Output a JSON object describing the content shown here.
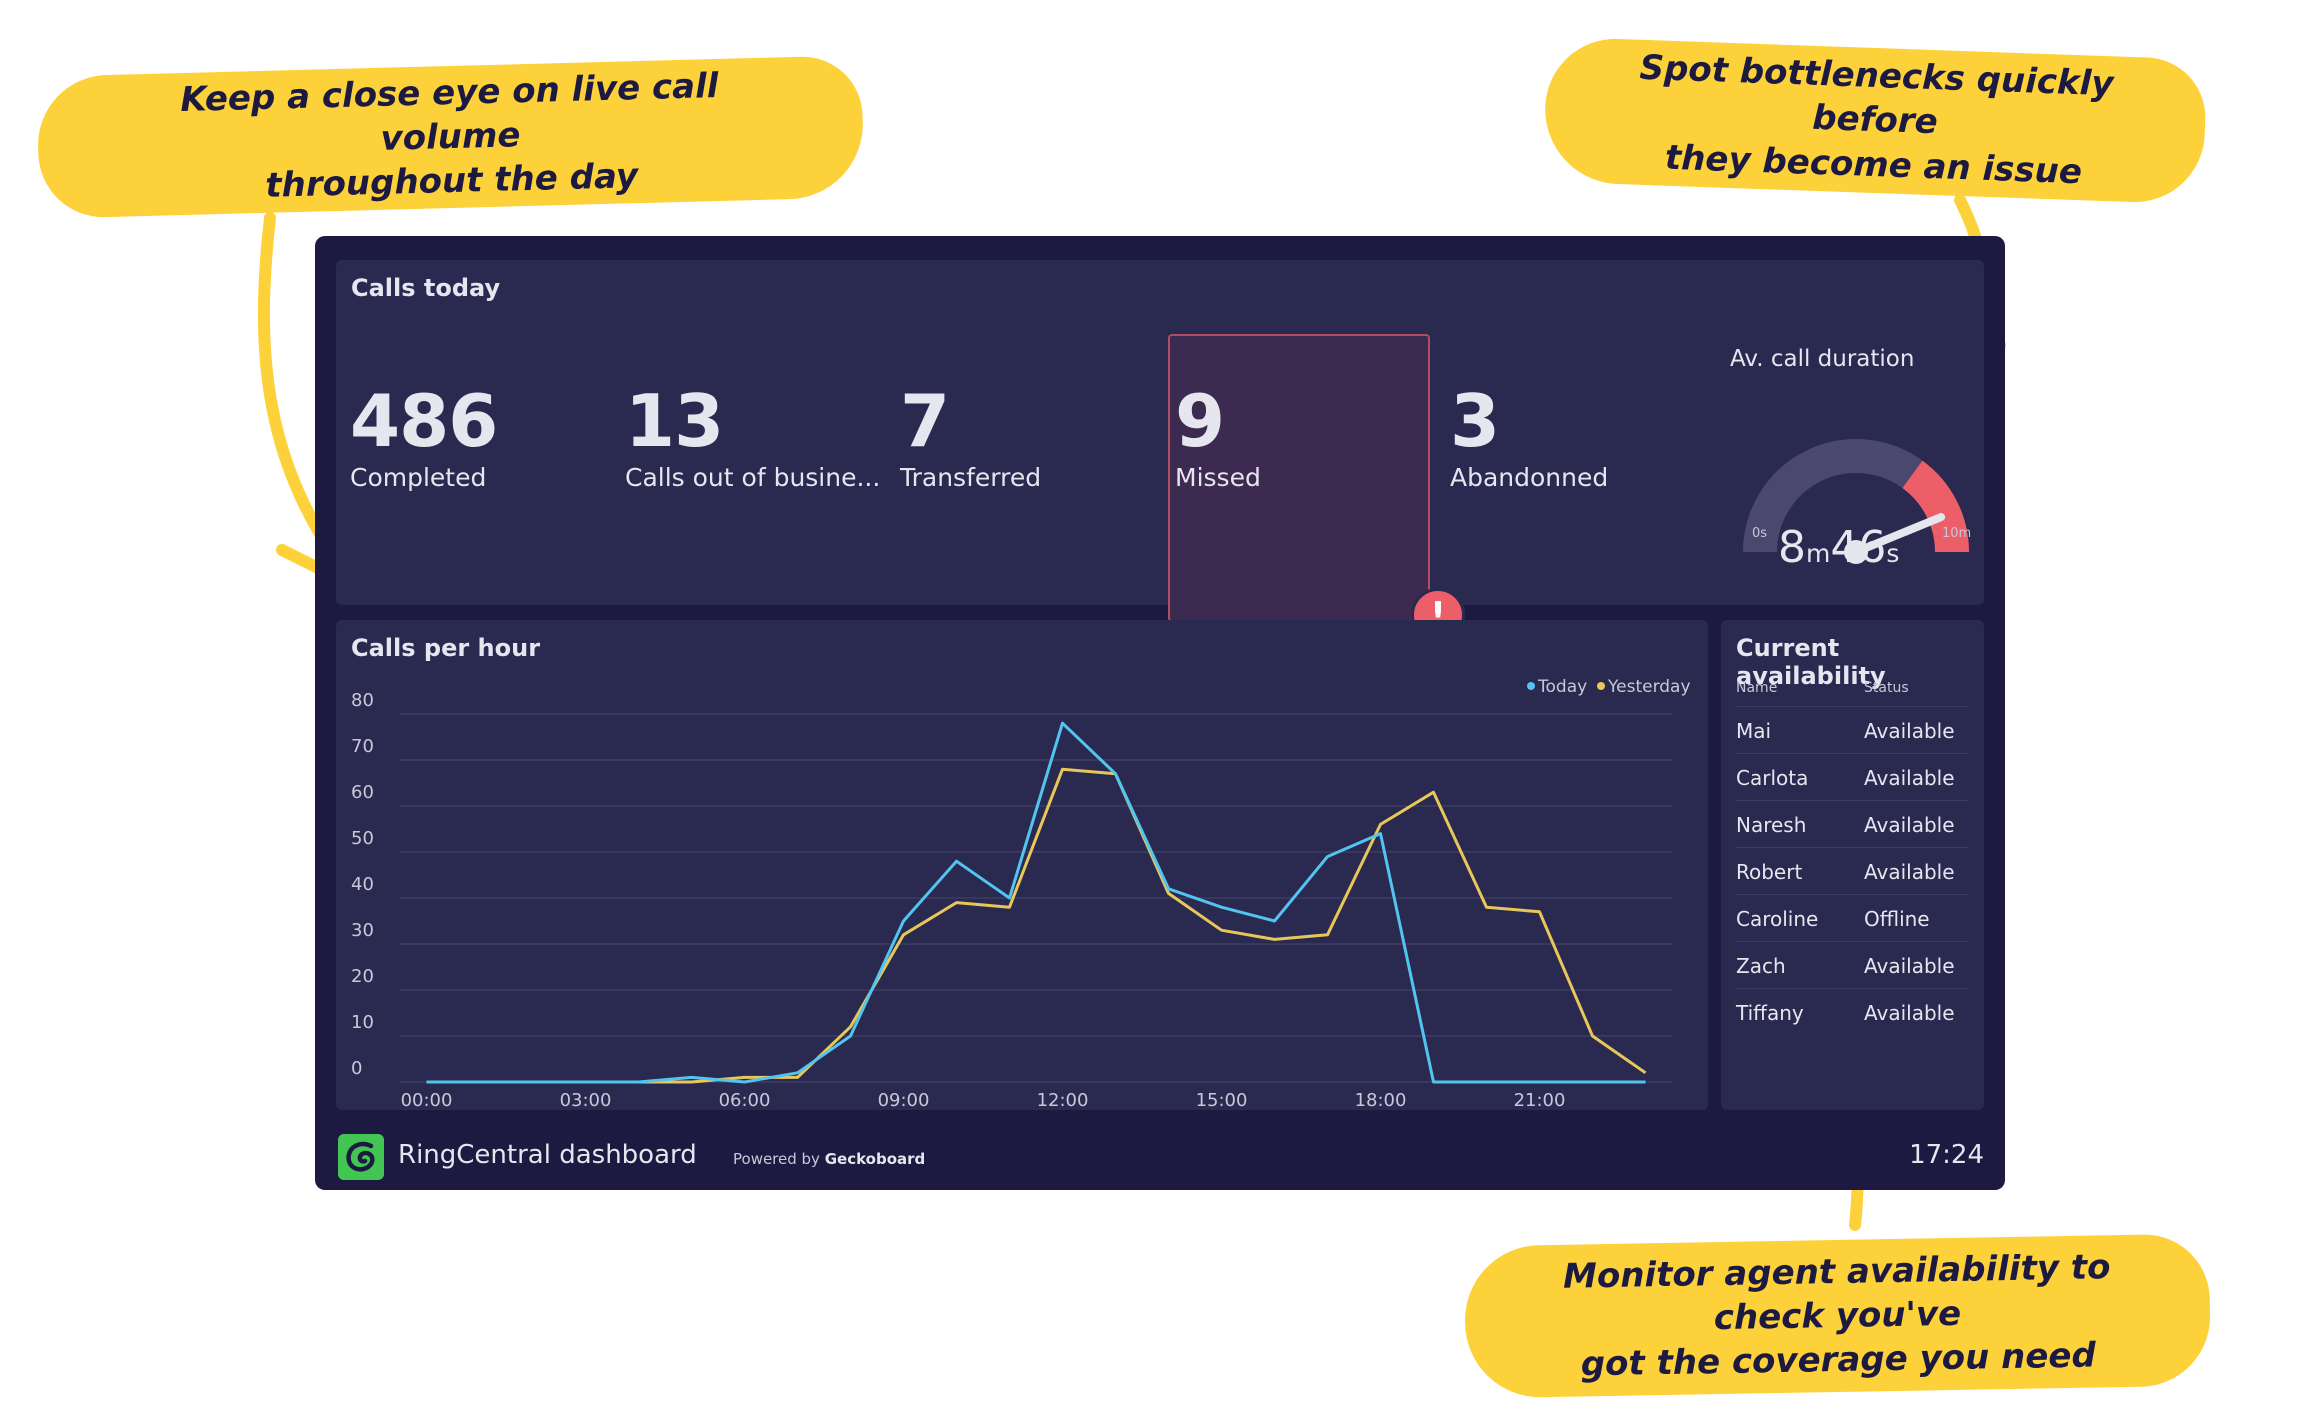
{
  "callouts": {
    "live_volume": [
      "Keep a close eye on live call volume",
      "throughout the day"
    ],
    "bottlenecks": [
      "Spot bottlenecks quickly before",
      "they become an issue"
    ],
    "availability": [
      "Monitor agent availability to check you've",
      "got the coverage you need"
    ]
  },
  "calls_today": {
    "title": "Calls today",
    "stats": [
      {
        "value": "486",
        "label": "Completed"
      },
      {
        "value": "13",
        "label": "Calls out of busine..."
      },
      {
        "value": "7",
        "label": "Transferred"
      },
      {
        "value": "9",
        "label": "Missed",
        "alert": true
      },
      {
        "value": "3",
        "label": "Abandonned"
      }
    ],
    "alert_symbol": "!"
  },
  "duration_gauge": {
    "title": "Av. call duration",
    "min_label": "0s",
    "max_label": "10m",
    "minutes": "8",
    "minutes_unit": "m",
    "seconds": "46",
    "seconds_unit": "s",
    "value_fraction": 0.876,
    "threshold_fraction": 0.7,
    "colors": {
      "track": "#4b4870",
      "danger": "#ec5f69",
      "needle": "#e6e6ef"
    }
  },
  "chart_data": {
    "type": "line",
    "title": "Calls per hour",
    "x": [
      "00:00",
      "01:00",
      "02:00",
      "03:00",
      "04:00",
      "05:00",
      "06:00",
      "07:00",
      "08:00",
      "09:00",
      "10:00",
      "11:00",
      "12:00",
      "13:00",
      "14:00",
      "15:00",
      "16:00",
      "17:00",
      "18:00",
      "19:00",
      "20:00",
      "21:00",
      "22:00",
      "23:00"
    ],
    "x_tick_labels": [
      "00:00",
      "03:00",
      "06:00",
      "09:00",
      "12:00",
      "15:00",
      "18:00",
      "21:00"
    ],
    "y_ticks": [
      0,
      10,
      20,
      30,
      40,
      50,
      60,
      70,
      80
    ],
    "ylim": [
      0,
      80
    ],
    "series": [
      {
        "name": "Today",
        "color": "#52c4f0",
        "values": [
          0,
          0,
          0,
          0,
          0,
          1,
          0,
          2,
          10,
          35,
          48,
          40,
          78,
          67,
          42,
          38,
          35,
          49,
          54,
          0,
          0,
          0,
          0,
          0
        ]
      },
      {
        "name": "Yesterday",
        "color": "#e8c75a",
        "values": [
          0,
          0,
          0,
          0,
          0,
          0,
          1,
          1,
          12,
          32,
          39,
          38,
          68,
          67,
          41,
          33,
          31,
          32,
          56,
          63,
          38,
          37,
          10,
          2
        ]
      }
    ],
    "legend_position": "top-right",
    "grid": true
  },
  "availability": {
    "title": "Current availability",
    "columns": [
      "Name",
      "Status"
    ],
    "rows": [
      [
        "Mai",
        "Available"
      ],
      [
        "Carlota",
        "Available"
      ],
      [
        "Naresh",
        "Available"
      ],
      [
        "Robert",
        "Available"
      ],
      [
        "Caroline",
        "Offline"
      ],
      [
        "Zach",
        "Available"
      ],
      [
        "Tiffany",
        "Available"
      ]
    ]
  },
  "footer": {
    "dashboard_name": "RingCentral dashboard",
    "powered_by": "Powered by",
    "brand": "Geckoboard",
    "time": "17:24"
  },
  "colors": {
    "background": "#1c1a40",
    "panel": "#2a2950",
    "callout": "#fdd13a",
    "logo": "#43c553"
  },
  "icons": {
    "logo": "geckoboard-logo-icon",
    "alert": "exclamation-alert-icon"
  }
}
